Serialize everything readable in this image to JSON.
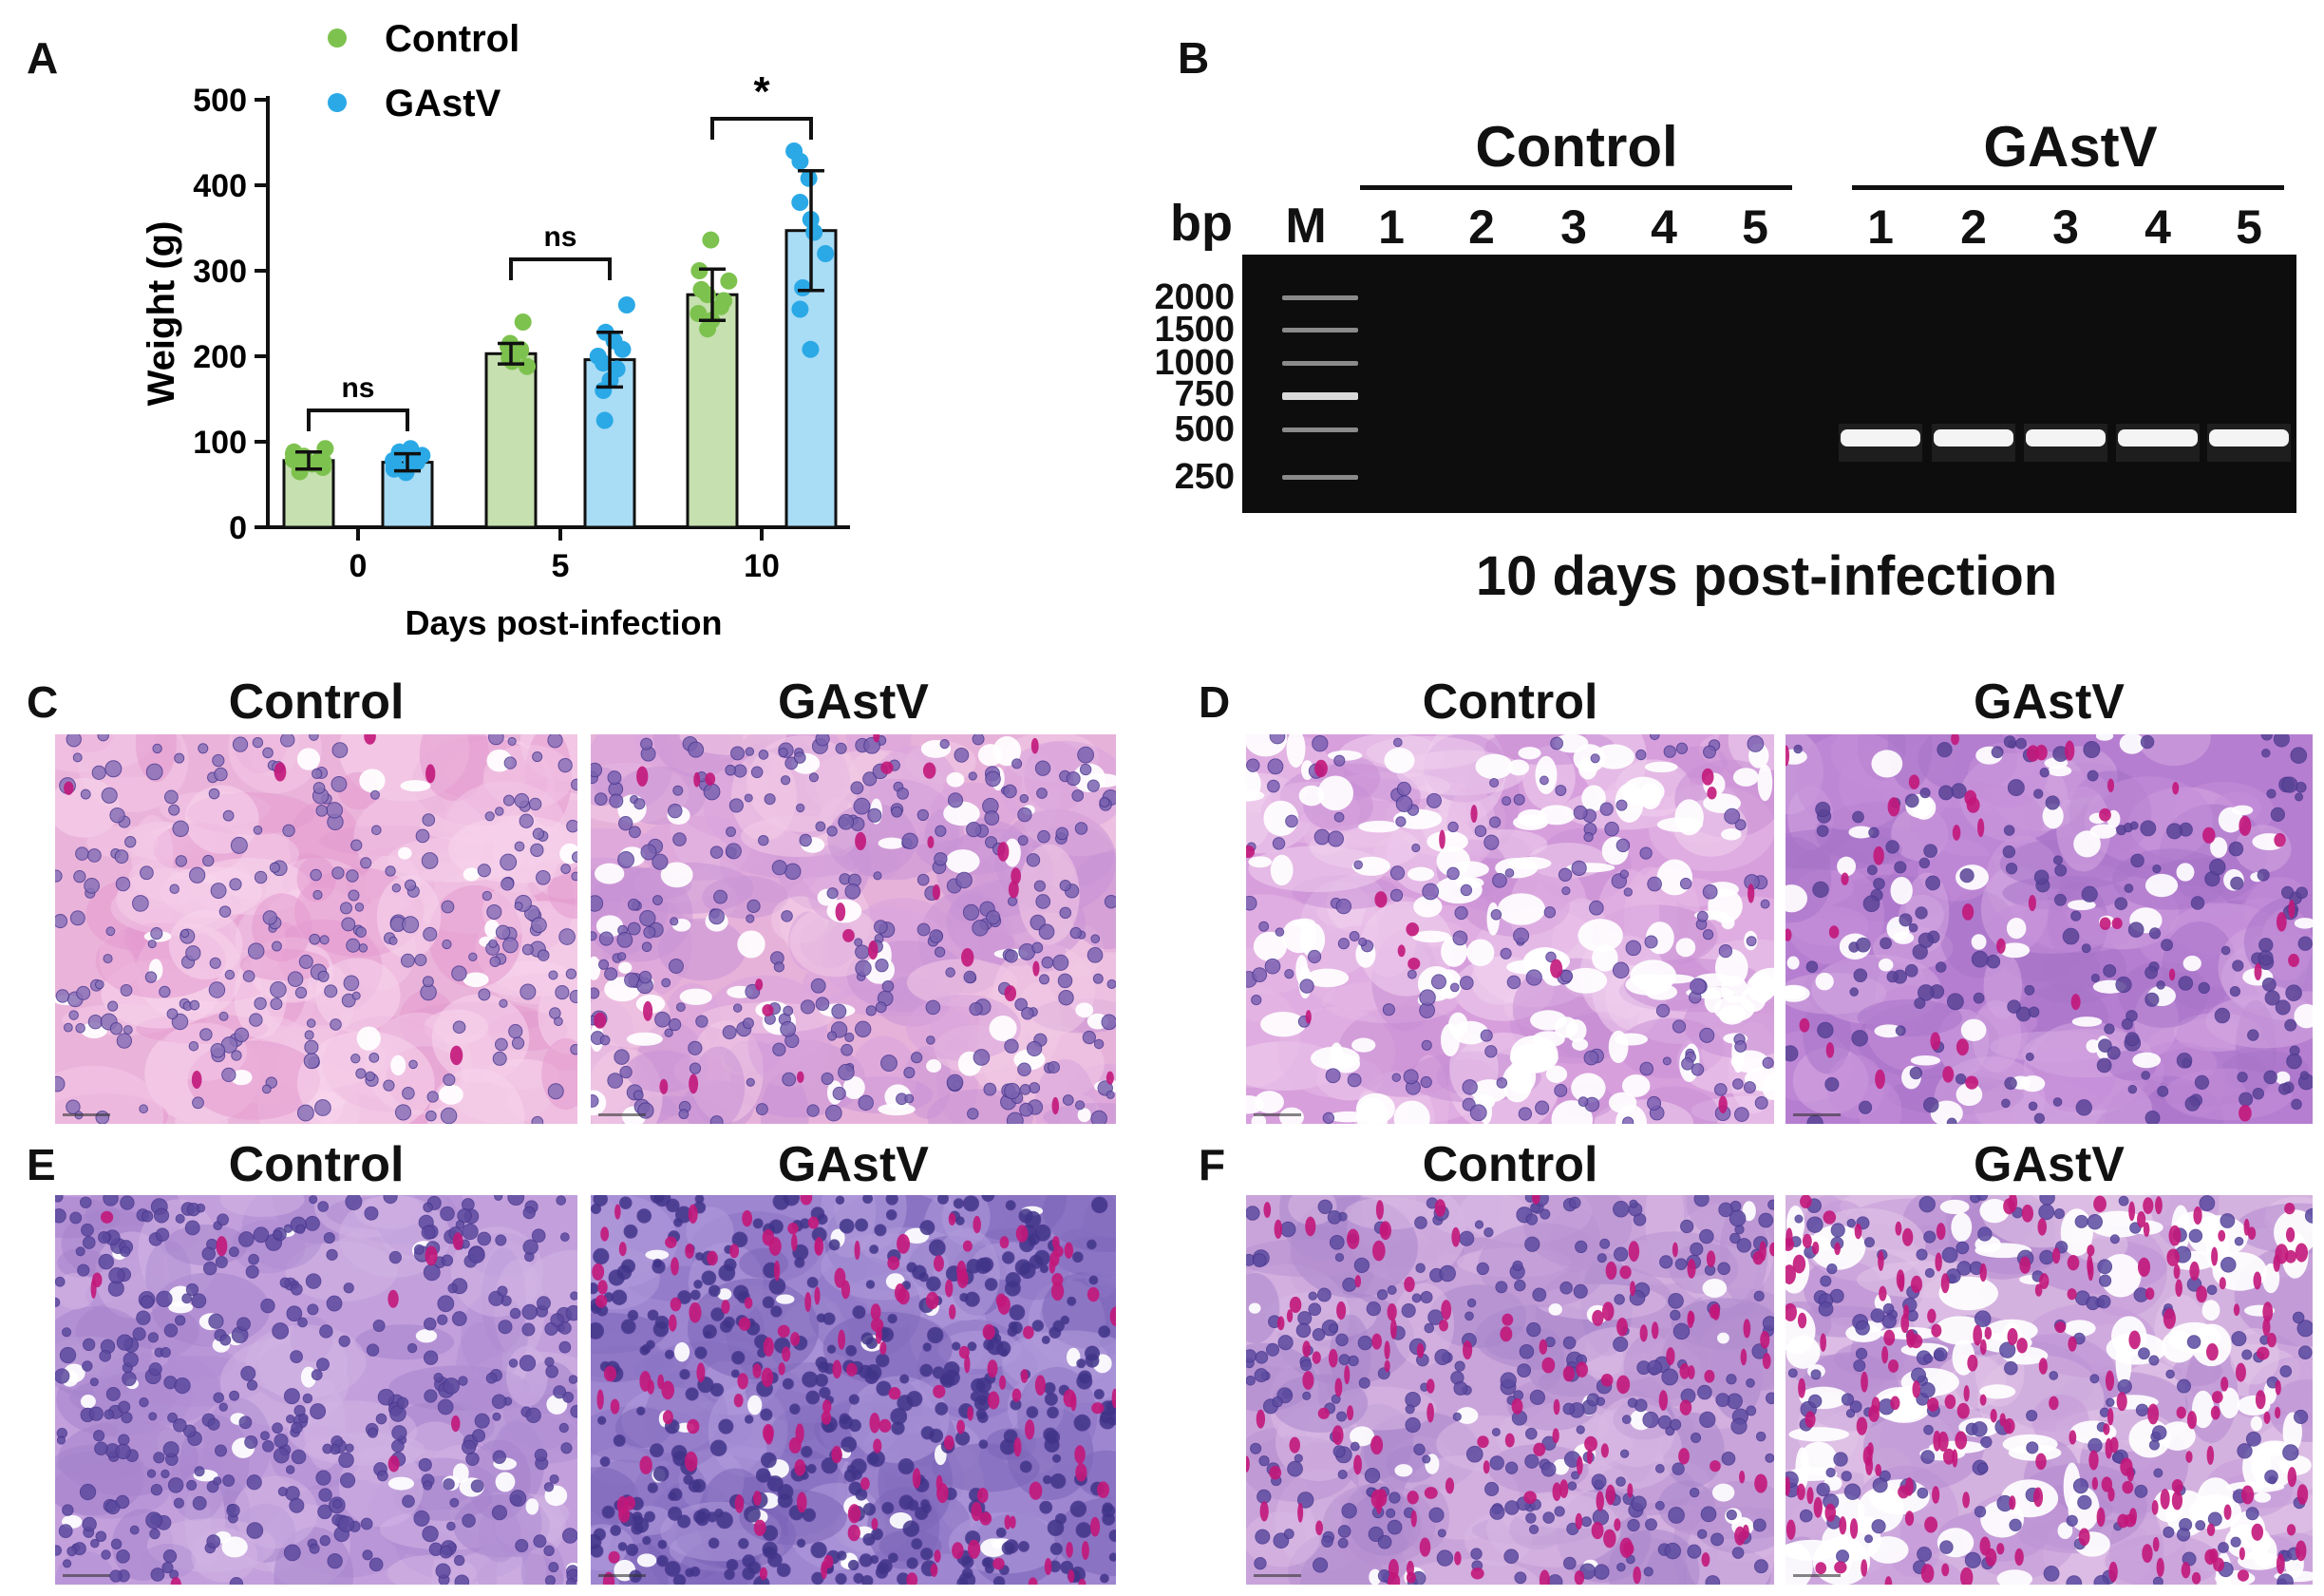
{
  "panels": {
    "a": {
      "letter": "A"
    },
    "b": {
      "letter": "B",
      "bp_label": "bp",
      "marker_label": "M",
      "groups": [
        {
          "name": "Control",
          "lanes": [
            "1",
            "2",
            "3",
            "4",
            "5"
          ]
        },
        {
          "name": "GAstV",
          "lanes": [
            "1",
            "2",
            "3",
            "4",
            "5"
          ]
        }
      ],
      "ladder": [
        "2000",
        "1500",
        "1000",
        "750",
        "500",
        "250"
      ],
      "caption": "10 days post-infection"
    },
    "c": {
      "letter": "C",
      "left": "Control",
      "right": "GAstV"
    },
    "d": {
      "letter": "D",
      "left": "Control",
      "right": "GAstV"
    },
    "e": {
      "letter": "E",
      "left": "Control",
      "right": "GAstV"
    },
    "f": {
      "letter": "F",
      "left": "Control",
      "right": "GAstV"
    }
  },
  "chart_data": {
    "type": "bar",
    "xlabel": "Days post-infection",
    "ylabel": "Weight (g)",
    "ylim": [
      0,
      500
    ],
    "yticks": [
      0,
      100,
      200,
      300,
      400,
      500
    ],
    "categories": [
      "0",
      "5",
      "10"
    ],
    "legend_position": "top",
    "series": [
      {
        "name": "Control",
        "color": "#7dc24e",
        "bar_color": "#c6e0b0",
        "values": [
          78,
          203,
          272
        ],
        "sd": [
          10,
          12,
          30
        ],
        "points": [
          [
            65,
            70,
            74,
            77,
            79,
            81,
            83,
            86,
            88,
            92
          ],
          [
            188,
            194,
            198,
            202,
            204,
            206,
            208,
            211,
            215,
            240
          ],
          [
            232,
            242,
            250,
            258,
            265,
            272,
            278,
            288,
            300,
            336
          ]
        ]
      },
      {
        "name": "GAstV",
        "color": "#2aa9e6",
        "bar_color": "#a9dcf5",
        "values": [
          76,
          196,
          347
        ],
        "sd": [
          10,
          32,
          70
        ],
        "points": [
          [
            64,
            68,
            72,
            74,
            76,
            78,
            80,
            84,
            88,
            92
          ],
          [
            125,
            160,
            172,
            185,
            192,
            200,
            208,
            218,
            228,
            260
          ],
          [
            208,
            255,
            280,
            320,
            345,
            360,
            380,
            408,
            428,
            440
          ]
        ]
      }
    ],
    "significance": [
      "ns",
      "ns",
      "*"
    ]
  },
  "colors": {
    "gel_bg": "#0d0d0d",
    "he_pink": "#e8a6d6",
    "he_purple": "#c58ad8",
    "nucleus": "#6b4fa8",
    "rbc": "#c2177a"
  }
}
